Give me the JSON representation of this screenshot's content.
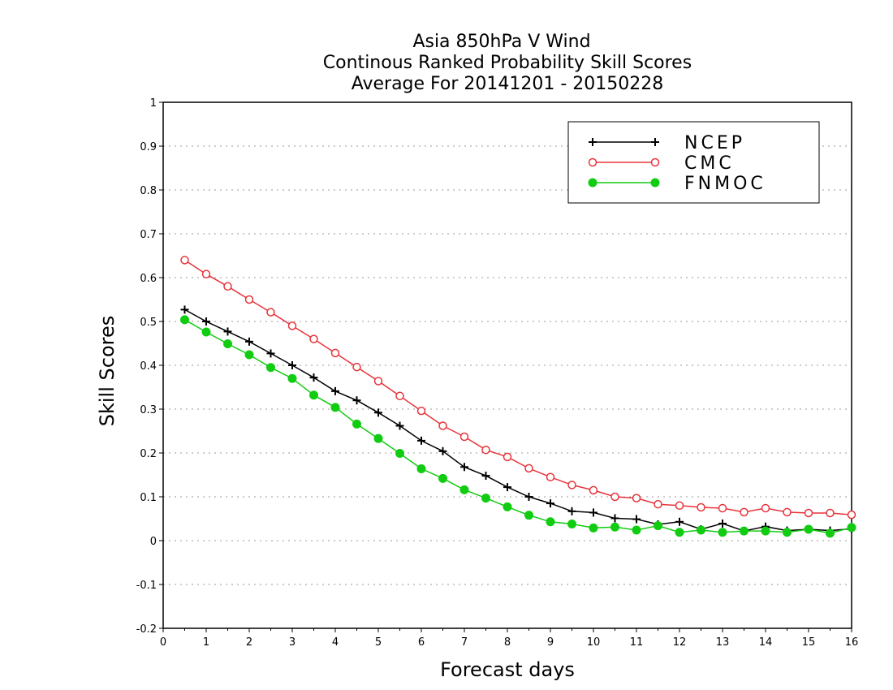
{
  "chart_data": {
    "type": "line",
    "title_lines": [
      "Asia 850hPa V Wind",
      "Continous Ranked Probability Skill Scores",
      "Average For 20141201 - 20150228"
    ],
    "xlabel": "Forecast days",
    "ylabel": "Skill Scores",
    "xlim": [
      0,
      16
    ],
    "ylim": [
      -0.2,
      1
    ],
    "x_ticks": [
      0,
      1,
      2,
      3,
      4,
      5,
      6,
      7,
      8,
      9,
      10,
      11,
      12,
      13,
      14,
      15,
      16
    ],
    "x_tick_labels": [
      "0",
      "1",
      "2",
      "3",
      "4",
      "5",
      "6",
      "7",
      "8",
      "9",
      "10",
      "11",
      "12",
      "13",
      "14",
      "15",
      "16"
    ],
    "y_ticks": [
      -0.2,
      -0.1,
      0,
      0.1,
      0.2,
      0.3,
      0.4,
      0.5,
      0.6,
      0.7,
      0.8,
      0.9,
      1
    ],
    "y_tick_labels": [
      "-0.2",
      "-0.1",
      "0",
      "0.1",
      "0.2",
      "0.3",
      "0.4",
      "0.5",
      "0.6",
      "0.7",
      "0.8",
      "0.9",
      "1"
    ],
    "grid": "horizontal dotted",
    "legend_position": "top-right",
    "x": [
      0.5,
      1,
      1.5,
      2,
      2.5,
      3,
      3.5,
      4,
      4.5,
      5,
      5.5,
      6,
      6.5,
      7,
      7.5,
      8,
      8.5,
      9,
      9.5,
      10,
      10.5,
      11,
      11.5,
      12,
      12.5,
      13,
      13.5,
      14,
      14.5,
      15,
      15.5,
      16
    ],
    "series": [
      {
        "name": "NCEP",
        "color": "#000000",
        "marker": "plus",
        "values": [
          0.527,
          0.5,
          0.477,
          0.454,
          0.427,
          0.4,
          0.372,
          0.341,
          0.32,
          0.292,
          0.262,
          0.228,
          0.204,
          0.168,
          0.148,
          0.122,
          0.1,
          0.085,
          0.067,
          0.064,
          0.051,
          0.049,
          0.037,
          0.043,
          0.026,
          0.039,
          0.022,
          0.032,
          0.023,
          0.026,
          0.023,
          0.027
        ]
      },
      {
        "name": "CMC",
        "color": "#e8333a",
        "marker": "open-circle",
        "values": [
          0.64,
          0.608,
          0.58,
          0.55,
          0.521,
          0.49,
          0.46,
          0.428,
          0.396,
          0.364,
          0.33,
          0.296,
          0.262,
          0.237,
          0.207,
          0.191,
          0.165,
          0.145,
          0.127,
          0.115,
          0.1,
          0.097,
          0.083,
          0.08,
          0.076,
          0.074,
          0.065,
          0.074,
          0.065,
          0.063,
          0.063,
          0.059
        ]
      },
      {
        "name": "FNMOC",
        "color": "#11cc11",
        "marker": "filled-circle",
        "values": [
          0.504,
          0.476,
          0.449,
          0.424,
          0.395,
          0.37,
          0.332,
          0.304,
          0.266,
          0.233,
          0.199,
          0.164,
          0.142,
          0.116,
          0.097,
          0.077,
          0.058,
          0.043,
          0.038,
          0.029,
          0.031,
          0.024,
          0.034,
          0.019,
          0.024,
          0.019,
          0.022,
          0.022,
          0.019,
          0.026,
          0.017,
          0.03
        ]
      }
    ]
  }
}
